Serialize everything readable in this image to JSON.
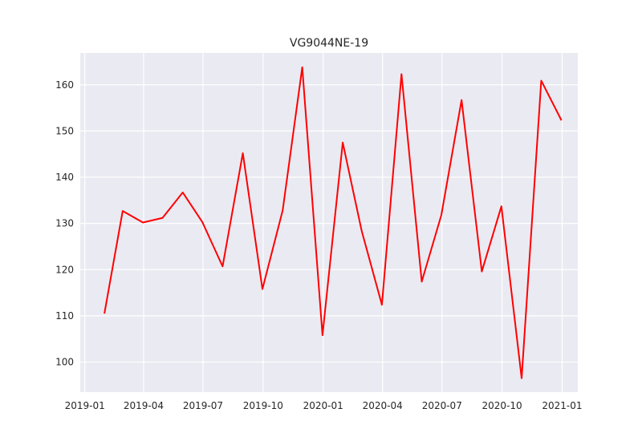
{
  "chart_data": {
    "type": "line",
    "title": "VG9044NE-19",
    "xlabel": "",
    "ylabel": "",
    "x_axis_type": "date",
    "xlim": [
      "2018-12-25",
      "2021-01-25"
    ],
    "ylim": [
      93.5,
      166.9
    ],
    "x_ticks": [
      "2019-01",
      "2019-04",
      "2019-07",
      "2019-10",
      "2020-01",
      "2020-04",
      "2020-07",
      "2020-10",
      "2021-01"
    ],
    "y_ticks": [
      100,
      110,
      120,
      130,
      140,
      150,
      160
    ],
    "grid": true,
    "background": "#eaeaf2",
    "grid_color": "#ffffff",
    "series": [
      {
        "color": "#ff0000",
        "x": [
          "2019-01-31",
          "2019-02-28",
          "2019-03-31",
          "2019-04-30",
          "2019-05-31",
          "2019-06-30",
          "2019-07-31",
          "2019-08-31",
          "2019-09-30",
          "2019-10-31",
          "2019-11-30",
          "2019-12-31",
          "2020-01-31",
          "2020-02-29",
          "2020-03-31",
          "2020-04-30",
          "2020-05-31",
          "2020-06-30",
          "2020-07-31",
          "2020-08-31",
          "2020-09-30",
          "2020-10-31",
          "2020-11-30",
          "2020-12-31"
        ],
        "y": [
          110.5,
          132.7,
          130.2,
          131.2,
          136.7,
          130.3,
          120.7,
          145.2,
          115.8,
          132.8,
          163.8,
          105.8,
          147.5,
          128.4,
          112.4,
          162.3,
          117.4,
          131.8,
          156.7,
          119.6,
          133.7,
          96.5,
          160.9,
          152.3
        ]
      }
    ]
  }
}
